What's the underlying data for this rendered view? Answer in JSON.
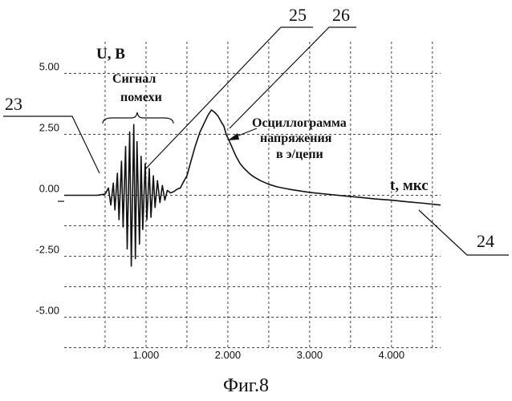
{
  "chart_data": {
    "type": "line",
    "title": "",
    "xlabel": "t,  мкс",
    "ylabel": "U,  В",
    "xlim": [
      0.0,
      4.6
    ],
    "ylim": [
      -6.3,
      6.3
    ],
    "x_ticks": [
      {
        "value": 1.0,
        "label": "1.000"
      },
      {
        "value": 2.0,
        "label": "2.000"
      },
      {
        "value": 3.0,
        "label": "3.000"
      },
      {
        "value": 4.0,
        "label": "4.000"
      }
    ],
    "y_ticks": [
      {
        "value": 5.0,
        "label": "5.00"
      },
      {
        "value": 2.5,
        "label": "2.50"
      },
      {
        "value": 0.0,
        "label": "0.00"
      },
      {
        "value": -2.5,
        "label": "-2.50"
      },
      {
        "value": -5.0,
        "label": "-5.00"
      }
    ],
    "grid": true,
    "series": [
      {
        "x": [
          0.0,
          0.4,
          0.5,
          0.54,
          0.57,
          0.6,
          0.62,
          0.65,
          0.67,
          0.7,
          0.72,
          0.75,
          0.77,
          0.8,
          0.82,
          0.85,
          0.87,
          0.89,
          0.92,
          0.94,
          0.96,
          0.99,
          1.01,
          1.04,
          1.06,
          1.09,
          1.11,
          1.14,
          1.17,
          1.2,
          1.23,
          1.26,
          1.3,
          1.34,
          1.38,
          1.42,
          1.45,
          1.5,
          1.55,
          1.6,
          1.66,
          1.71,
          1.76,
          1.8,
          1.84,
          1.88,
          1.92,
          1.95,
          1.98,
          2.02,
          2.06,
          2.1,
          2.15,
          2.2,
          2.26,
          2.32,
          2.4,
          2.5,
          2.6,
          2.7,
          2.8,
          3.0,
          3.2,
          3.4,
          3.6,
          3.8,
          4.0,
          4.2,
          4.4,
          4.6
        ],
        "y": [
          0.0,
          0.0,
          0.05,
          0.3,
          -0.4,
          0.5,
          -0.6,
          0.9,
          -1.0,
          1.4,
          -1.3,
          2.0,
          -2.2,
          2.6,
          -2.9,
          2.9,
          -2.6,
          2.2,
          -2.0,
          1.6,
          -1.4,
          1.3,
          -1.0,
          1.1,
          -0.9,
          0.8,
          -0.5,
          0.6,
          -0.3,
          0.4,
          -0.2,
          0.2,
          0.1,
          0.15,
          0.25,
          0.3,
          0.5,
          0.8,
          1.4,
          2.0,
          2.6,
          2.95,
          3.3,
          3.5,
          3.4,
          3.25,
          3.0,
          2.85,
          2.5,
          2.2,
          1.9,
          1.6,
          1.3,
          1.1,
          0.9,
          0.75,
          0.6,
          0.45,
          0.35,
          0.28,
          0.22,
          0.12,
          0.05,
          -0.02,
          -0.08,
          -0.15,
          -0.2,
          -0.27,
          -0.33,
          -0.4
        ]
      }
    ],
    "annotations": [
      {
        "text": "Сигнал"
      },
      {
        "text": "помехи"
      },
      {
        "text": "Осциллограмма"
      },
      {
        "text": "напряжения"
      },
      {
        "text": "в э/цепи"
      }
    ],
    "callouts": [
      "23",
      "24",
      "25",
      "26"
    ]
  },
  "caption": "Фиг.8"
}
